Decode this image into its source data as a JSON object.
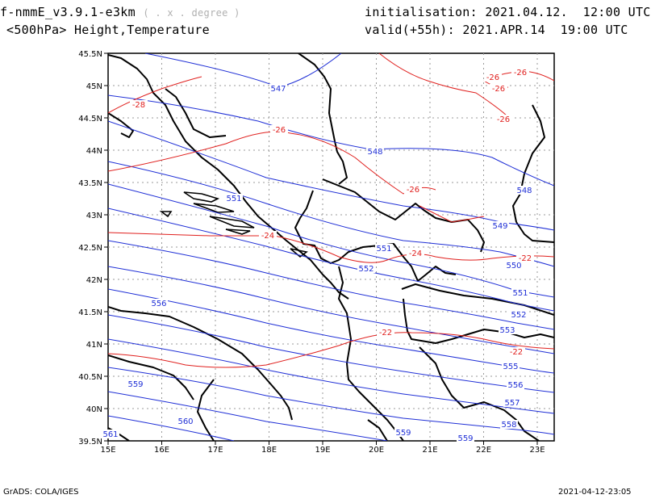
{
  "header": {
    "model": "f-nmmE_v3.9.1-e3km",
    "units": "( . x . degree )",
    "level": "<500hPa> Height,Temperature",
    "init_label": "initialisation:",
    "init_date": "2021.04.12.",
    "init_time": "12:00 UTC",
    "valid_label": "valid(+55h):",
    "valid_date": "2021.APR.14",
    "valid_time": "19:00 UTC"
  },
  "footer": {
    "credit": "GrADS: COLA/IGES",
    "timestamp": "2021-04-12-23:05"
  },
  "map": {
    "lat_labels": [
      "45.5N",
      "45N",
      "44.5N",
      "44N",
      "43.5N",
      "43N",
      "42.5N",
      "42N",
      "41.5N",
      "41N",
      "40.5N",
      "40N",
      "39.5N"
    ],
    "lon_labels": [
      "15E",
      "16E",
      "17E",
      "18E",
      "19E",
      "20E",
      "21E",
      "22E",
      "23E"
    ],
    "height_color": "#1f2fd6",
    "temp_color": "#e0201e",
    "height_labels": [
      "547",
      "548",
      "548",
      "549",
      "550",
      "551",
      "551",
      "552",
      "551",
      "552",
      "553",
      "555",
      "556",
      "556",
      "557",
      "558",
      "559",
      "559",
      "559",
      "560",
      "561"
    ],
    "temp_labels": [
      "-26",
      "-26",
      "-26",
      "-26",
      "-28",
      "-26",
      "-24",
      "-24",
      "-26",
      "-22",
      "-22",
      "-22"
    ]
  }
}
